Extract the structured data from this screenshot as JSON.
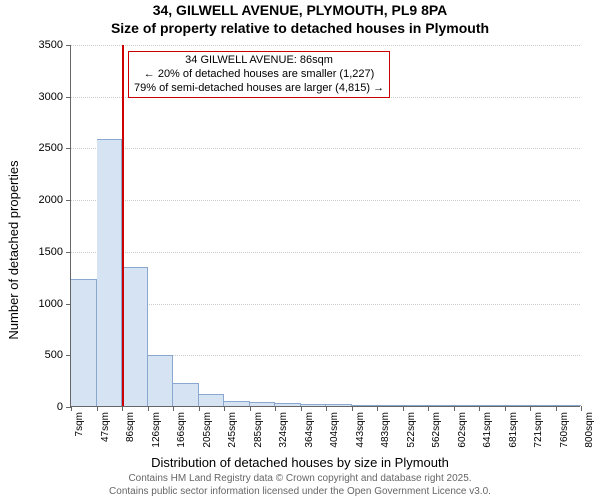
{
  "title": {
    "main": "34, GILWELL AVENUE, PLYMOUTH, PL9 8PA",
    "sub": "Size of property relative to detached houses in Plymouth",
    "fontsize": 14,
    "color": "#000000"
  },
  "chart": {
    "type": "histogram",
    "background_color": "#ffffff",
    "grid_color": "#cccccc",
    "axis_color": "#666666",
    "x": {
      "label": "Distribution of detached houses by size in Plymouth",
      "label_fontsize": 13,
      "tick_labels": [
        "7sqm",
        "47sqm",
        "86sqm",
        "126sqm",
        "166sqm",
        "205sqm",
        "245sqm",
        "285sqm",
        "324sqm",
        "364sqm",
        "404sqm",
        "443sqm",
        "483sqm",
        "522sqm",
        "562sqm",
        "602sqm",
        "641sqm",
        "681sqm",
        "721sqm",
        "760sqm",
        "800sqm"
      ],
      "tick_fontsize": 10
    },
    "y": {
      "label": "Number of detached properties",
      "label_fontsize": 13,
      "min": 0,
      "max": 3500,
      "tick_step": 500,
      "tick_labels": [
        "0",
        "500",
        "1000",
        "1500",
        "2000",
        "2500",
        "3000",
        "3500"
      ],
      "tick_fontsize": 11
    },
    "bars": {
      "count": 20,
      "values": [
        1230,
        2580,
        1340,
        490,
        220,
        120,
        50,
        40,
        30,
        20,
        15,
        10,
        8,
        5,
        5,
        3,
        2,
        2,
        1,
        1
      ],
      "fill_color": "#d6e3f3",
      "border_color": "#8aa7cf",
      "bar_width_fraction": 1.0
    },
    "marker": {
      "x_value_sqm": 86,
      "line_color": "#cc0000",
      "annotation": {
        "line1": "34 GILWELL AVENUE: 86sqm",
        "line2": "← 20% of detached houses are smaller (1,227)",
        "line3": "79% of semi-detached houses are larger (4,815) →",
        "border_color": "#cc0000",
        "background_color": "#ffffff",
        "fontsize": 11
      }
    }
  },
  "attribution": {
    "line1": "Contains HM Land Registry data © Crown copyright and database right 2025.",
    "line2": "Contains public sector information licensed under the Open Government Licence v3.0.",
    "color": "#666666",
    "fontsize": 10
  }
}
